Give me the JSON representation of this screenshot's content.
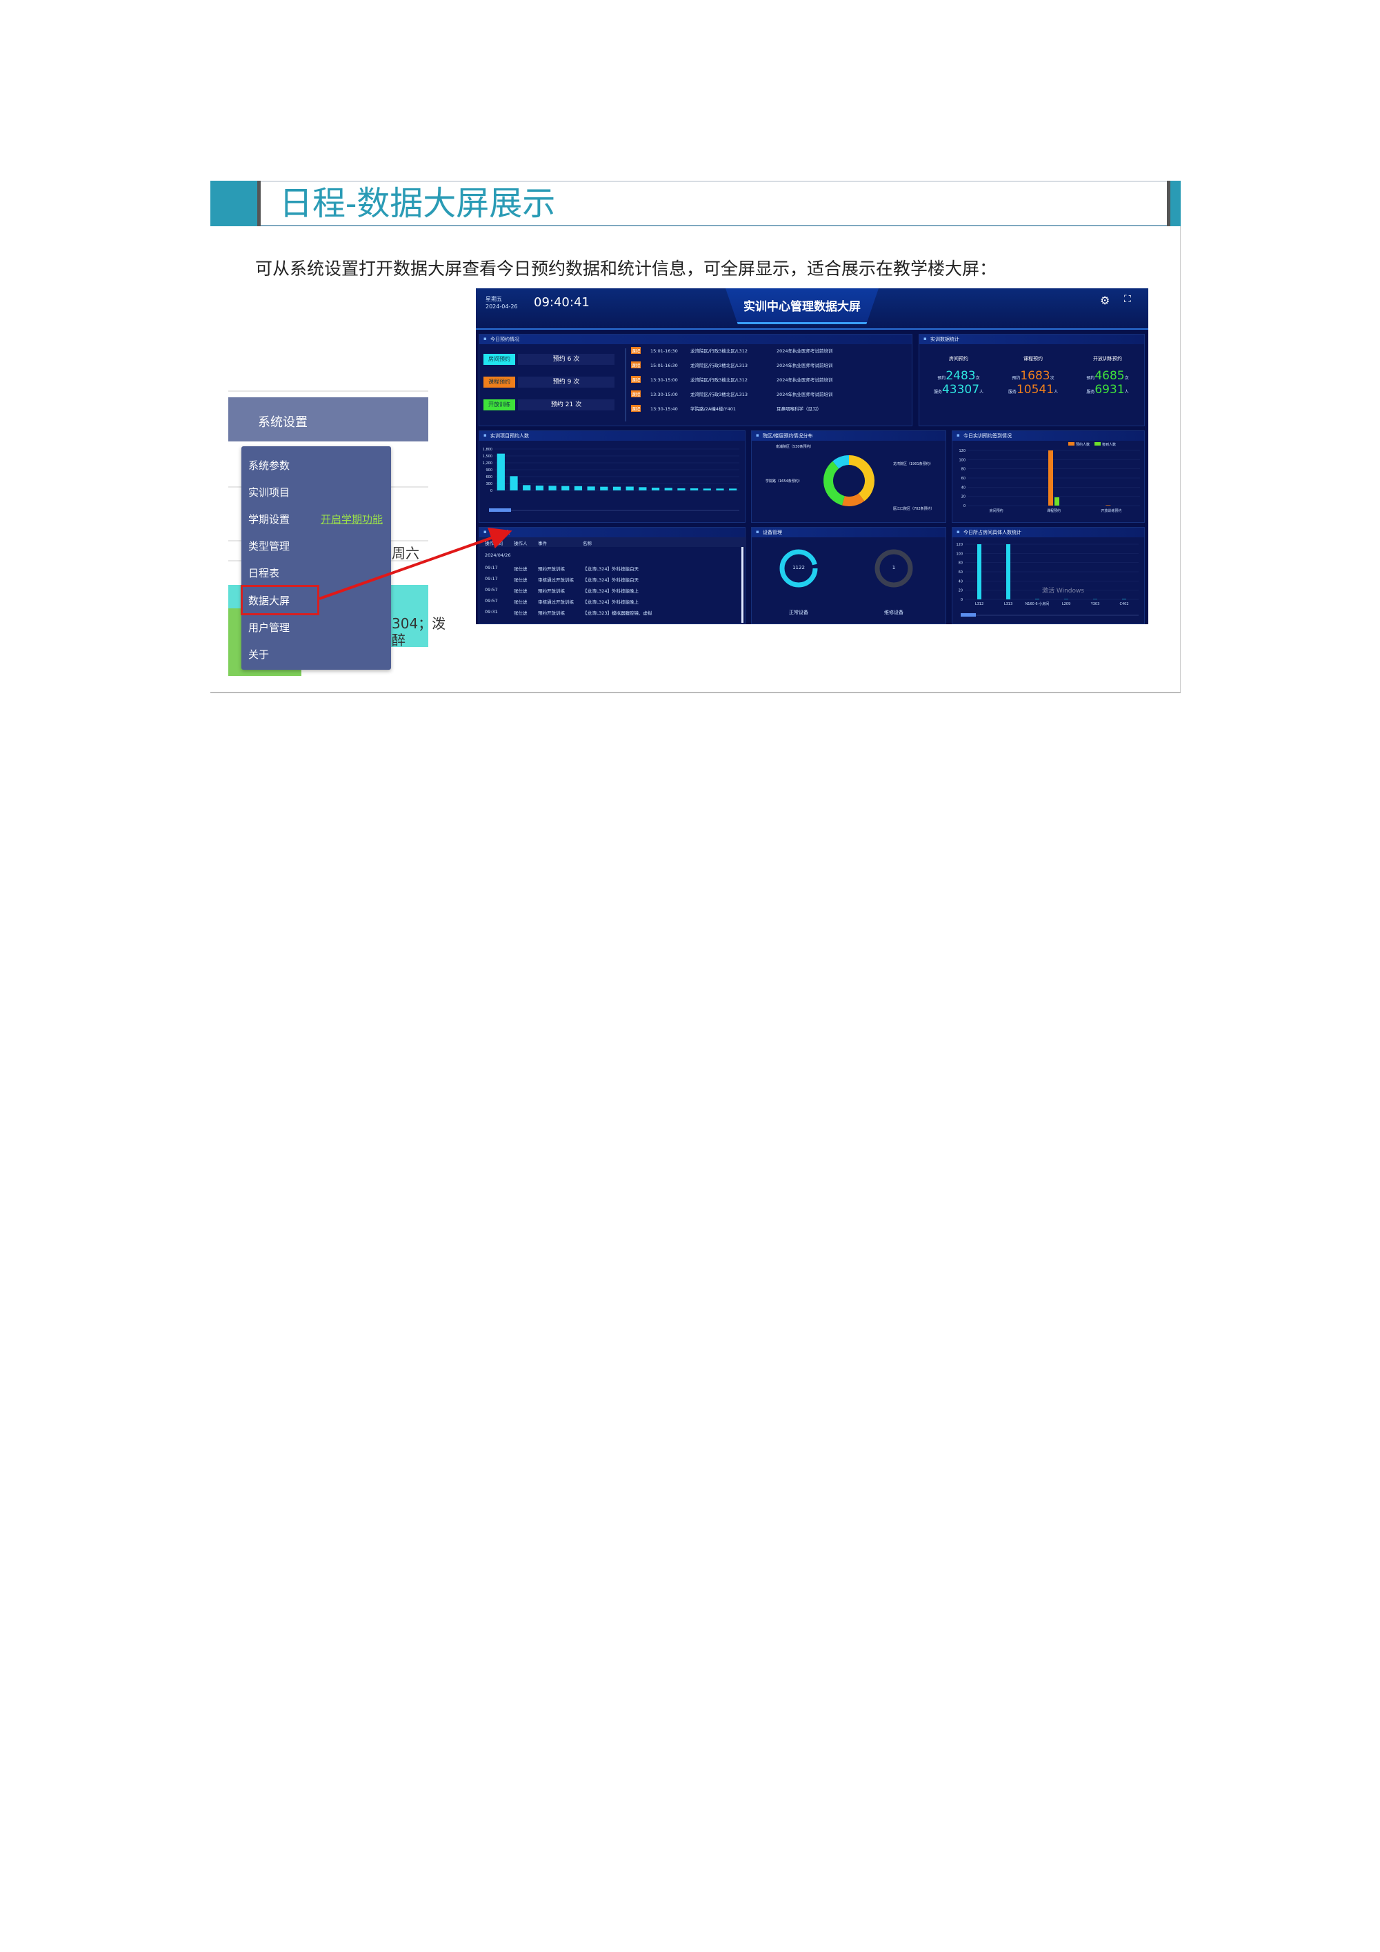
{
  "slide": {
    "title": "日程-数据大屏展示",
    "description": "可从系统设置打开数据大屏查看今日预约数据和统计信息，可全屏显示，适合展示在教学楼大屏："
  },
  "menu": {
    "header": "系统设置",
    "items": [
      "系统参数",
      "实训项目",
      "学期设置",
      "类型管理",
      "日程表",
      "数据大屏",
      "用户管理",
      "关于"
    ],
    "term_link": "开启学期功能",
    "highlighted": "数据大屏",
    "background_fragments": [
      "周六",
      "304；泼",
      "醉"
    ]
  },
  "dashboard": {
    "weekday": "星期五",
    "date": "2024-04-26",
    "time": "09:40:41",
    "title": "实训中心管理数据大屏",
    "today": {
      "title": "今日预约情况",
      "cards": [
        {
          "label": "房间预约",
          "count": "预约 6 次",
          "color": "#21e6f0"
        },
        {
          "label": "课程预约",
          "count": "预约 9 次",
          "color": "#f07f1b"
        },
        {
          "label": "开放训练",
          "count": "预约 21 次",
          "color": "#3fe23a"
        }
      ],
      "rows": [
        {
          "tag": "课程",
          "time": "15:01-16:30",
          "place": "龙湾院区/行政3楼北区/L312",
          "name": "2024年执业医师考试前培训"
        },
        {
          "tag": "课程",
          "time": "15:01-16:30",
          "place": "龙湾院区/行政3楼北区/L313",
          "name": "2024年执业医师考试前培训"
        },
        {
          "tag": "课程",
          "time": "13:30-15:00",
          "place": "龙湾院区/行政3楼北区/L312",
          "name": "2024年执业医师考试前培训"
        },
        {
          "tag": "课程",
          "time": "13:30-15:00",
          "place": "龙湾院区/行政3楼北区/L313",
          "name": "2024年执业医师考试前培训"
        },
        {
          "tag": "课程",
          "time": "13:30-15:40",
          "place": "学院路/2A幢4楼/Y401",
          "name": "耳鼻咽喉科学（见习）"
        }
      ]
    },
    "stats": {
      "title": "实训数据统计",
      "cols": [
        {
          "label": "房间预约",
          "reserve": "2483",
          "serve": "43307",
          "color": "#2ee6e0"
        },
        {
          "label": "课程预约",
          "reserve": "1683",
          "serve": "10541",
          "color": "#f07f1b"
        },
        {
          "label": "开放训练预约",
          "reserve": "4685",
          "serve": "6931",
          "color": "#3fe23a"
        }
      ],
      "reserve_prefix": "预约",
      "reserve_unit": "次",
      "serve_prefix": "服务",
      "serve_unit": "人"
    },
    "realtime": {
      "title": "实时动态",
      "headers": [
        "操作时间",
        "操作人",
        "事件",
        "名称"
      ],
      "date": "2024/04/26",
      "rows": [
        [
          "09:17",
          "张仕进",
          "预约开放训练",
          "【龙湾L324】外科技能白天"
        ],
        [
          "09:17",
          "张仕进",
          "审核通过开放训练",
          "【龙湾L324】外科技能白天"
        ],
        [
          "09:57",
          "张仕进",
          "预约开放训练",
          "【龙湾L324】外科技能晚上"
        ],
        [
          "09:57",
          "张仕进",
          "审核通过开放训练",
          "【龙湾L324】外科技能晚上"
        ],
        [
          "09:31",
          "张仕进",
          "预约开放训练",
          "【龙湾L323】模拟器腹腔镜、虚拟"
        ]
      ]
    },
    "devices": {
      "title": "设备管理",
      "normal": "1122",
      "normal_label": "正常设备",
      "repair": "1",
      "repair_label": "维修设备"
    },
    "watermark": "激活 Windows"
  },
  "chart_data": [
    {
      "type": "bar",
      "title": "实训项目预约人数",
      "ylim": [
        0,
        1800
      ],
      "yticks": [
        0,
        300,
        600,
        900,
        1200,
        1500,
        1800
      ],
      "values": [
        1600,
        620,
        230,
        210,
        200,
        190,
        185,
        170,
        160,
        160,
        165,
        140,
        120,
        110,
        90,
        90,
        80,
        80,
        80
      ],
      "color": "#22d8f0"
    },
    {
      "type": "pie",
      "title": "院区/楼层预约情况分布",
      "donut": true,
      "slices": [
        {
          "name": "龙湾院区（1901条预约）",
          "value": 1901,
          "color": "#f7c51b"
        },
        {
          "name": "瓯江口院区（702条预约）",
          "value": 702,
          "color": "#f07f1b"
        },
        {
          "name": "学院路（1654条预约）",
          "value": 1654,
          "color": "#3fe23a"
        },
        {
          "name": "南浦院区（530条预约）",
          "value": 530,
          "color": "#22d0f0"
        }
      ]
    },
    {
      "type": "bar",
      "title": "今日实训预约签到情况",
      "categories": [
        "房间预约",
        "课程预约",
        "开放训练预约"
      ],
      "ylim": [
        0,
        120
      ],
      "yticks": [
        0,
        20,
        40,
        60,
        80,
        100,
        120
      ],
      "legend": "top-right",
      "series": [
        {
          "name": "预约人数",
          "values": [
            0,
            120,
            1
          ],
          "color": "#f07f1b"
        },
        {
          "name": "签到人数",
          "values": [
            0,
            18,
            0
          ],
          "color": "#6fe02a"
        }
      ]
    },
    {
      "type": "bar",
      "title": "今日所占房间具体人数统计",
      "categories": [
        "L312",
        "L313",
        "N160 6-小房间",
        "L209",
        "Y303",
        "C402"
      ],
      "ylim": [
        0,
        120
      ],
      "yticks": [
        0,
        20,
        40,
        60,
        80,
        100,
        120
      ],
      "values": [
        120,
        120,
        1,
        0,
        0,
        1
      ],
      "color": "#22d8f0"
    }
  ]
}
